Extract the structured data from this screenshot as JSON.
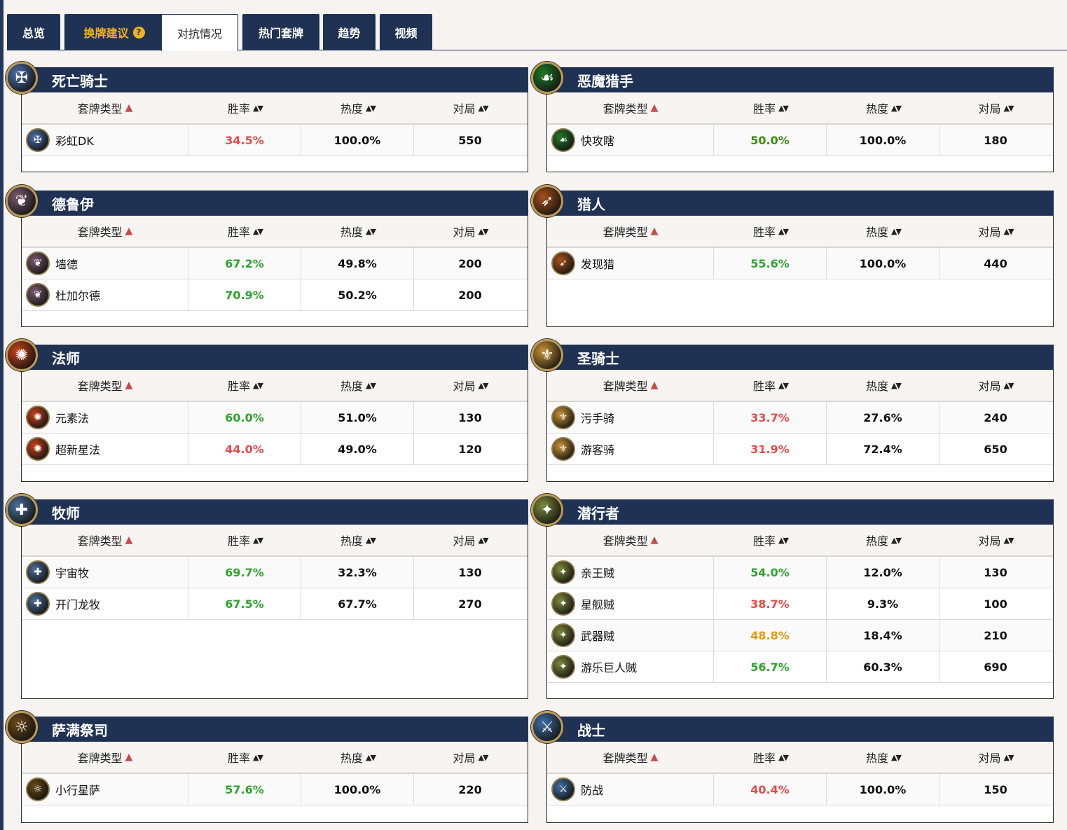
{
  "tabs": [
    {
      "label": "总览"
    },
    {
      "label": "换牌建议",
      "help": "?"
    },
    {
      "label": "对抗情况"
    },
    {
      "label": "热门套牌"
    },
    {
      "label": "趋势"
    },
    {
      "label": "视频"
    }
  ],
  "table_headers": {
    "deck_type": "套牌类型",
    "win_rate": "胜率",
    "popularity": "热度",
    "games": "对局",
    "sort_asc": "▲",
    "sort_both": "▲▼"
  },
  "panels": [
    {
      "class": "死亡骑士",
      "icon": "death-knight-icon",
      "color": "#4b6fa8",
      "decks": [
        {
          "name": "彩虹DK",
          "win_rate": "34.5%",
          "wr_class": "bad",
          "popularity": "100.0%",
          "games": "550"
        }
      ]
    },
    {
      "class": "恶魔猎手",
      "icon": "demon-hunter-icon",
      "color": "#1f7a24",
      "decks": [
        {
          "name": "快攻瞎",
          "win_rate": "50.0%",
          "wr_class": "dark-good",
          "popularity": "100.0%",
          "games": "180"
        }
      ]
    },
    {
      "class": "德鲁伊",
      "icon": "druid-icon",
      "color": "#7a5a6e",
      "decks": [
        {
          "name": "墙德",
          "win_rate": "67.2%",
          "wr_class": "good",
          "popularity": "49.8%",
          "games": "200"
        },
        {
          "name": "杜加尔德",
          "win_rate": "70.9%",
          "wr_class": "good",
          "popularity": "50.2%",
          "games": "200"
        }
      ]
    },
    {
      "class": "猎人",
      "icon": "hunter-icon",
      "color": "#a8501b",
      "decks": [
        {
          "name": "发现猎",
          "win_rate": "55.6%",
          "wr_class": "good",
          "popularity": "100.0%",
          "games": "440"
        }
      ]
    },
    {
      "class": "法师",
      "icon": "mage-icon",
      "color": "#c8421c",
      "decks": [
        {
          "name": "元素法",
          "win_rate": "60.0%",
          "wr_class": "good",
          "popularity": "51.0%",
          "games": "130"
        },
        {
          "name": "超新星法",
          "win_rate": "44.0%",
          "wr_class": "bad",
          "popularity": "49.0%",
          "games": "120"
        }
      ]
    },
    {
      "class": "圣骑士",
      "icon": "paladin-icon",
      "color": "#c89235",
      "decks": [
        {
          "name": "污手骑",
          "win_rate": "33.7%",
          "wr_class": "bad",
          "popularity": "27.6%",
          "games": "240"
        },
        {
          "name": "游客骑",
          "win_rate": "31.9%",
          "wr_class": "bad",
          "popularity": "72.4%",
          "games": "650"
        }
      ]
    },
    {
      "class": "牧师",
      "icon": "priest-icon",
      "color": "#4a6f9a",
      "decks": [
        {
          "name": "宇宙牧",
          "win_rate": "69.7%",
          "wr_class": "good",
          "popularity": "32.3%",
          "games": "130"
        },
        {
          "name": "开门龙牧",
          "win_rate": "67.5%",
          "wr_class": "good",
          "popularity": "67.7%",
          "games": "270"
        }
      ]
    },
    {
      "class": "潜行者",
      "icon": "rogue-icon",
      "color": "#7c8a3a",
      "decks": [
        {
          "name": "亲王贼",
          "win_rate": "54.0%",
          "wr_class": "good",
          "popularity": "12.0%",
          "games": "130"
        },
        {
          "name": "星舰贼",
          "win_rate": "38.7%",
          "wr_class": "bad",
          "popularity": "9.3%",
          "games": "100"
        },
        {
          "name": "武器贼",
          "win_rate": "48.8%",
          "wr_class": "mid-rate",
          "popularity": "18.4%",
          "games": "210"
        },
        {
          "name": "游乐巨人贼",
          "win_rate": "56.7%",
          "wr_class": "good",
          "popularity": "60.3%",
          "games": "690"
        }
      ]
    },
    {
      "class": "萨满祭司",
      "icon": "shaman-icon",
      "color": "#6a4a18",
      "decks": [
        {
          "name": "小行星萨",
          "win_rate": "57.6%",
          "wr_class": "good",
          "popularity": "100.0%",
          "games": "220"
        }
      ]
    },
    {
      "class": "战士",
      "icon": "warrior-icon",
      "color": "#3f6fa8",
      "decks": [
        {
          "name": "防战",
          "win_rate": "40.4%",
          "wr_class": "bad",
          "popularity": "100.0%",
          "games": "150"
        }
      ]
    }
  ]
}
